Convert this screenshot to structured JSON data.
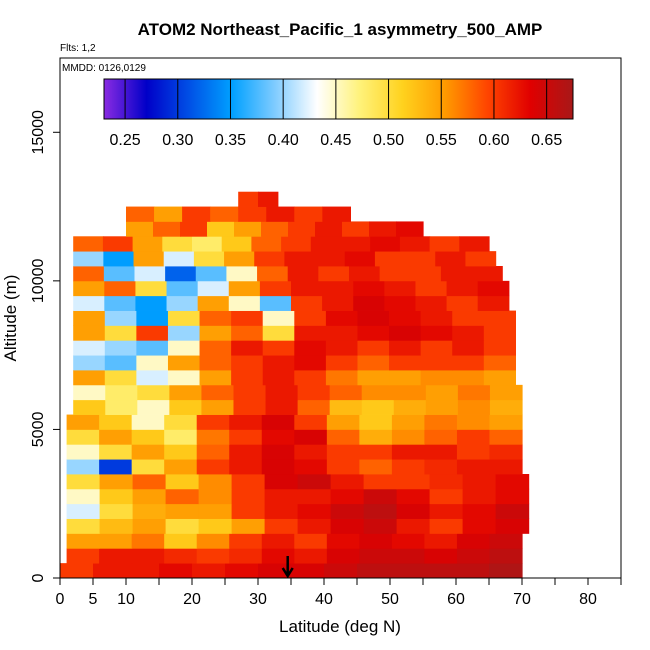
{
  "chart_data": {
    "type": "heatmap",
    "title": "ATOM2 Northeast_Pacific_1 asymmetry_500_AMP",
    "notes": {
      "flights": "Flts: 1,2",
      "dates": "MMDD: 0126,0129"
    },
    "xlabel": "Latitude (deg N)",
    "ylabel": "Altitude (m)",
    "xlim": [
      0,
      85
    ],
    "ylim": [
      0,
      17500
    ],
    "x_ticks_labeled": [
      0,
      5,
      10,
      20,
      30,
      40,
      50,
      60,
      70,
      80
    ],
    "x_ticks_minor": [
      15,
      25,
      35,
      45,
      55,
      65,
      75,
      85
    ],
    "y_ticks": [
      0,
      5000,
      10000,
      15000
    ],
    "colorbar": {
      "min": 0.23,
      "max": 0.675,
      "ticks": [
        "0.25",
        "0.30",
        "0.35",
        "0.40",
        "0.45",
        "0.50",
        "0.55",
        "0.60",
        "0.65"
      ],
      "colors": [
        "#8a2be2",
        "#0000c8",
        "#0050e6",
        "#00a0ff",
        "#7ecbff",
        "#ffffff",
        "#fff27a",
        "#ffd21e",
        "#ff9a00",
        "#ff4400",
        "#e00000",
        "#a81818"
      ]
    },
    "marker": {
      "label": "arrow",
      "latitude": 34.5
    },
    "layers": [
      {
        "alt_min": 0,
        "alt_max": 500,
        "lat_start": 0,
        "lat_end": 70,
        "values": [
          0.6,
          0.62,
          0.62,
          0.63,
          0.62,
          0.63,
          0.64,
          0.64,
          0.65,
          0.66,
          0.66,
          0.66,
          0.66,
          0.67
        ]
      },
      {
        "alt_min": 500,
        "alt_max": 1000,
        "lat_start": 1,
        "lat_end": 70,
        "values": [
          0.6,
          0.62,
          0.62,
          0.61,
          0.6,
          0.61,
          0.63,
          0.62,
          0.64,
          0.65,
          0.65,
          0.64,
          0.65,
          0.66
        ]
      },
      {
        "alt_min": 1000,
        "alt_max": 1500,
        "lat_start": 1,
        "lat_end": 70,
        "values": [
          0.55,
          0.55,
          0.57,
          0.52,
          0.56,
          0.6,
          0.62,
          0.6,
          0.63,
          0.64,
          0.63,
          0.62,
          0.64,
          0.65
        ]
      },
      {
        "alt_min": 1500,
        "alt_max": 2000,
        "lat_start": 1,
        "lat_end": 71,
        "values": [
          0.5,
          0.53,
          0.55,
          0.5,
          0.52,
          0.55,
          0.6,
          0.62,
          0.64,
          0.65,
          0.62,
          0.6,
          0.63,
          0.64
        ]
      },
      {
        "alt_min": 2000,
        "alt_max": 2500,
        "lat_start": 1,
        "lat_end": 71,
        "values": [
          0.42,
          0.5,
          0.54,
          0.55,
          0.55,
          0.6,
          0.62,
          0.63,
          0.65,
          0.66,
          0.64,
          0.62,
          0.63,
          0.65
        ]
      },
      {
        "alt_min": 2500,
        "alt_max": 3000,
        "lat_start": 1,
        "lat_end": 71,
        "values": [
          0.45,
          0.52,
          0.55,
          0.58,
          0.56,
          0.6,
          0.62,
          0.62,
          0.63,
          0.65,
          0.63,
          0.6,
          0.62,
          0.63
        ]
      },
      {
        "alt_min": 3000,
        "alt_max": 3500,
        "lat_start": 1,
        "lat_end": 71,
        "values": [
          0.5,
          0.55,
          0.58,
          0.52,
          0.56,
          0.6,
          0.64,
          0.65,
          0.62,
          0.6,
          0.6,
          0.61,
          0.62,
          0.63
        ]
      },
      {
        "alt_min": 3500,
        "alt_max": 4000,
        "lat_start": 1,
        "lat_end": 70,
        "values": [
          0.4,
          0.3,
          0.5,
          0.55,
          0.6,
          0.62,
          0.64,
          0.63,
          0.6,
          0.58,
          0.6,
          0.61,
          0.62,
          0.62
        ]
      },
      {
        "alt_min": 4000,
        "alt_max": 4500,
        "lat_start": 1,
        "lat_end": 70,
        "values": [
          0.45,
          0.5,
          0.55,
          0.52,
          0.58,
          0.62,
          0.64,
          0.62,
          0.6,
          0.6,
          0.62,
          0.62,
          0.6,
          0.61
        ]
      },
      {
        "alt_min": 4500,
        "alt_max": 5000,
        "lat_start": 1,
        "lat_end": 70,
        "values": [
          0.5,
          0.55,
          0.52,
          0.48,
          0.57,
          0.6,
          0.63,
          0.64,
          0.58,
          0.54,
          0.56,
          0.58,
          0.6,
          0.58
        ]
      },
      {
        "alt_min": 5000,
        "alt_max": 5500,
        "lat_start": 1,
        "lat_end": 70,
        "values": [
          0.55,
          0.52,
          0.45,
          0.5,
          0.6,
          0.62,
          0.64,
          0.6,
          0.55,
          0.52,
          0.55,
          0.57,
          0.56,
          0.55
        ]
      },
      {
        "alt_min": 5500,
        "alt_max": 6000,
        "lat_start": 2,
        "lat_end": 70,
        "values": [
          0.52,
          0.48,
          0.45,
          0.52,
          0.55,
          0.6,
          0.62,
          0.58,
          0.53,
          0.52,
          0.54,
          0.55,
          0.56,
          0.54
        ]
      },
      {
        "alt_min": 6000,
        "alt_max": 6500,
        "lat_start": 2,
        "lat_end": 70,
        "values": [
          0.45,
          0.48,
          0.5,
          0.55,
          0.58,
          0.6,
          0.62,
          0.6,
          0.58,
          0.56,
          0.56,
          0.55,
          0.57,
          0.55
        ]
      },
      {
        "alt_min": 6500,
        "alt_max": 7000,
        "lat_start": 2,
        "lat_end": 69,
        "values": [
          0.55,
          0.5,
          0.42,
          0.45,
          0.55,
          0.6,
          0.62,
          0.6,
          0.57,
          0.55,
          0.55,
          0.56,
          0.56,
          0.55
        ]
      },
      {
        "alt_min": 7000,
        "alt_max": 7500,
        "lat_start": 2,
        "lat_end": 69,
        "values": [
          0.4,
          0.38,
          0.45,
          0.55,
          0.58,
          0.6,
          0.62,
          0.63,
          0.6,
          0.58,
          0.6,
          0.6,
          0.6,
          0.58
        ]
      },
      {
        "alt_min": 7500,
        "alt_max": 8000,
        "lat_start": 2,
        "lat_end": 69,
        "values": [
          0.42,
          0.4,
          0.38,
          0.45,
          0.58,
          0.62,
          0.6,
          0.63,
          0.62,
          0.6,
          0.62,
          0.6,
          0.62,
          0.6
        ]
      },
      {
        "alt_min": 8000,
        "alt_max": 8500,
        "lat_start": 2,
        "lat_end": 69,
        "values": [
          0.55,
          0.5,
          0.6,
          0.4,
          0.55,
          0.58,
          0.5,
          0.62,
          0.62,
          0.63,
          0.64,
          0.63,
          0.62,
          0.6
        ]
      },
      {
        "alt_min": 8500,
        "alt_max": 9000,
        "lat_start": 2,
        "lat_end": 69,
        "values": [
          0.55,
          0.4,
          0.35,
          0.5,
          0.58,
          0.6,
          0.45,
          0.6,
          0.63,
          0.64,
          0.63,
          0.62,
          0.6,
          0.6
        ]
      },
      {
        "alt_min": 9000,
        "alt_max": 9500,
        "lat_start": 2,
        "lat_end": 68,
        "values": [
          0.42,
          0.38,
          0.35,
          0.4,
          0.55,
          0.45,
          0.38,
          0.6,
          0.62,
          0.64,
          0.63,
          0.62,
          0.6,
          0.62
        ]
      },
      {
        "alt_min": 9500,
        "alt_max": 10000,
        "lat_start": 2,
        "lat_end": 68,
        "values": [
          0.55,
          0.58,
          0.5,
          0.38,
          0.42,
          0.55,
          0.6,
          0.62,
          0.62,
          0.63,
          0.62,
          0.6,
          0.62,
          0.63
        ]
      },
      {
        "alt_min": 10000,
        "alt_max": 10500,
        "lat_start": 2,
        "lat_end": 67,
        "values": [
          0.58,
          0.38,
          0.42,
          0.32,
          0.38,
          0.45,
          0.58,
          0.62,
          0.6,
          0.62,
          0.6,
          0.6,
          0.62,
          0.62
        ]
      },
      {
        "alt_min": 10500,
        "alt_max": 11000,
        "lat_start": 2,
        "lat_end": 66,
        "values": [
          0.4,
          0.35,
          0.55,
          0.42,
          0.5,
          0.55,
          0.6,
          0.62,
          0.62,
          0.63,
          0.6,
          0.6,
          0.62,
          0.6
        ]
      },
      {
        "alt_min": 11000,
        "alt_max": 11500,
        "lat_start": 2,
        "lat_end": 65,
        "values": [
          0.58,
          0.6,
          0.55,
          0.5,
          0.48,
          0.52,
          0.58,
          0.6,
          0.62,
          0.62,
          0.63,
          0.62,
          0.6,
          0.62
        ]
      },
      {
        "alt_min": 11500,
        "alt_max": 12000,
        "lat_start": 10,
        "lat_end": 55,
        "values": [
          0.55,
          0.58,
          0.6,
          0.52,
          0.55,
          0.58,
          0.6,
          0.62,
          0.6,
          0.62,
          0.63
        ]
      },
      {
        "alt_min": 12000,
        "alt_max": 12500,
        "lat_start": 10,
        "lat_end": 44,
        "values": [
          0.58,
          0.55,
          0.6,
          0.58,
          0.6,
          0.62,
          0.6,
          0.62
        ]
      },
      {
        "alt_min": 12500,
        "alt_max": 13000,
        "lat_start": 27,
        "lat_end": 33,
        "values": [
          0.6,
          0.62
        ]
      }
    ]
  }
}
